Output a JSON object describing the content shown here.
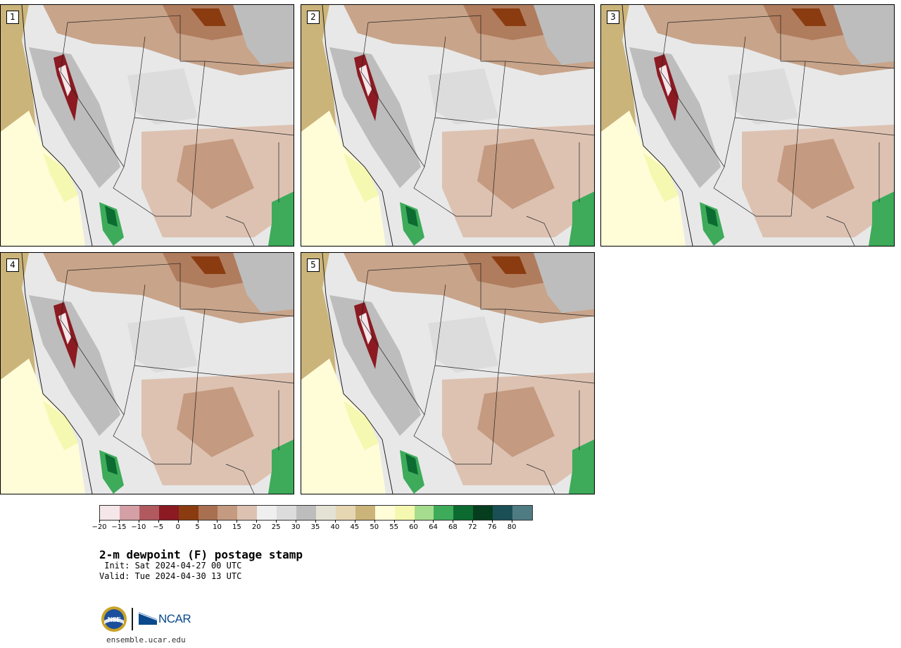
{
  "panels": [
    {
      "label": "1"
    },
    {
      "label": "2"
    },
    {
      "label": "3"
    },
    {
      "label": "4"
    },
    {
      "label": "5"
    }
  ],
  "colorbar": {
    "colors": [
      "#f5e6ea",
      "#d4a0a6",
      "#b05a60",
      "#8b1a22",
      "#8a3c10",
      "#a87050",
      "#c49a80",
      "#ddc2b2",
      "#efefef",
      "#dcdcdc",
      "#bdbdbd",
      "#e4e2d4",
      "#e6d6b2",
      "#cbb47a",
      "#fffcd8",
      "#f5f8b0",
      "#a6dc8e",
      "#3dab5a",
      "#0b6b30",
      "#063d1f",
      "#1a4f55",
      "#4f7c82"
    ],
    "tick_labels": [
      "−20",
      "−15",
      "−10",
      "−5",
      "0",
      "5",
      "10",
      "15",
      "20",
      "25",
      "30",
      "35",
      "40",
      "45",
      "50",
      "55",
      "60",
      "64",
      "68",
      "72",
      "76",
      "80"
    ]
  },
  "title": "2-m dewpoint (F) postage stamp",
  "init": " Init: Sat 2024-04-27 00 UTC",
  "valid": "Valid: Tue 2024-04-30 13 UTC",
  "logos": {
    "nsf": "NSF",
    "ncar": "NCAR"
  },
  "site": "ensemble.ucar.edu"
}
